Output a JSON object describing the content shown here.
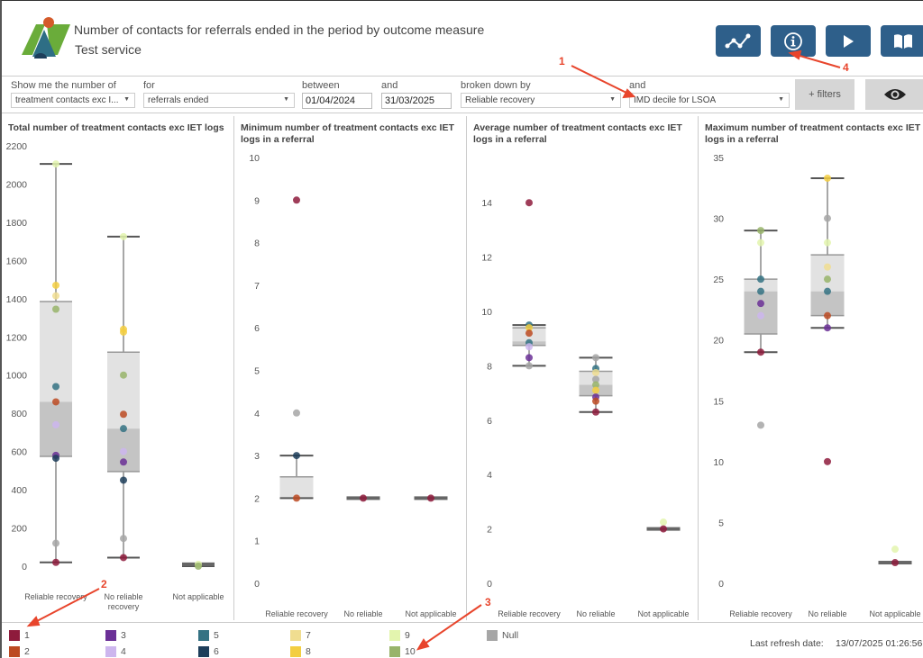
{
  "header": {
    "title": "Number of contacts for referrals ended in the period by outcome measure",
    "subtitle": "Test service",
    "buttons": [
      {
        "name": "trend-button",
        "icon": "line-chart-icon"
      },
      {
        "name": "info-button",
        "icon": "info-icon"
      },
      {
        "name": "play-button",
        "icon": "play-icon"
      },
      {
        "name": "guide-button",
        "icon": "book-icon"
      }
    ]
  },
  "filters": {
    "show_label": "Show me the number of",
    "show_value": "treatment contacts exc I...",
    "for_label": "for",
    "for_value": "referrals ended",
    "between_label": "between",
    "start_date": "01/04/2024",
    "and_label": "and",
    "end_date": "31/03/2025",
    "breakdown_label": "broken down by",
    "breakdown_value": "Reliable recovery",
    "and2_label": "and",
    "breakdown2_value": "IMD decile for LSOA",
    "more_filters_label": "+ filters",
    "eye_icon": "eye-icon"
  },
  "annotations": [
    "1",
    "2",
    "3",
    "4"
  ],
  "legend": {
    "items": [
      {
        "label": "1",
        "color": "#8e1b3c"
      },
      {
        "label": "2",
        "color": "#bc4a22"
      },
      {
        "label": "3",
        "color": "#6b3097"
      },
      {
        "label": "4",
        "color": "#cdb6ee"
      },
      {
        "label": "5",
        "color": "#347283"
      },
      {
        "label": "6",
        "color": "#1d3e5a"
      },
      {
        "label": "7",
        "color": "#f0dd90"
      },
      {
        "label": "8",
        "color": "#f3ce41"
      },
      {
        "label": "9",
        "color": "#e3f5ae"
      },
      {
        "label": "10",
        "color": "#98b46a"
      },
      {
        "label": "Null",
        "color": "#a6a6a6"
      }
    ],
    "refresh_label": "Last refresh date:",
    "refresh_value": "13/07/2025 01:26:56"
  },
  "chart_data": [
    {
      "type": "boxplot",
      "title": "Total number of treatment contacts exc IET logs",
      "categories": [
        "Reliable recovery",
        "No reliable recovery",
        "Not applicable"
      ],
      "ylim": [
        0,
        2200
      ],
      "yticks": [
        0,
        200,
        400,
        600,
        800,
        1000,
        1200,
        1400,
        1600,
        1800,
        2000,
        2200
      ],
      "boxes": [
        {
          "min": 20,
          "q1": 575,
          "median": 860,
          "q3": 1385,
          "max": 2105
        },
        {
          "min": 45,
          "q1": 495,
          "median": 720,
          "q3": 1120,
          "max": 1725
        },
        {
          "min": 0,
          "q1": 0,
          "median": 5,
          "q3": 10,
          "max": 10
        }
      ],
      "points": [
        [
          {
            "d": "9",
            "v": 2105
          },
          {
            "d": "8",
            "v": 1470
          },
          {
            "d": "7",
            "v": 1415
          },
          {
            "d": "10",
            "v": 1345
          },
          {
            "d": "5",
            "v": 940
          },
          {
            "d": "2",
            "v": 860
          },
          {
            "d": "4",
            "v": 740
          },
          {
            "d": "3",
            "v": 580
          },
          {
            "d": "6",
            "v": 565
          },
          {
            "d": "Null",
            "v": 120
          },
          {
            "d": "1",
            "v": 20
          }
        ],
        [
          {
            "d": "9",
            "v": 1725
          },
          {
            "d": "8",
            "v": 1240
          },
          {
            "d": "8",
            "v": 1225
          },
          {
            "d": "10",
            "v": 1000
          },
          {
            "d": "2",
            "v": 795
          },
          {
            "d": "5",
            "v": 720
          },
          {
            "d": "4",
            "v": 600
          },
          {
            "d": "3",
            "v": 545
          },
          {
            "d": "6",
            "v": 450
          },
          {
            "d": "Null",
            "v": 145
          },
          {
            "d": "1",
            "v": 45
          }
        ],
        [
          {
            "d": "9",
            "v": 10
          },
          {
            "d": "10",
            "v": 0
          }
        ]
      ]
    },
    {
      "type": "boxplot",
      "title": "Minimum number of treatment contacts exc IET logs in a referral",
      "categories": [
        "Reliable recovery",
        "No reliable recovery",
        "Not applicable"
      ],
      "ylim": [
        0,
        10
      ],
      "yticks": [
        0,
        1,
        2,
        3,
        4,
        5,
        6,
        7,
        8,
        9,
        10
      ],
      "boxes": [
        {
          "min": 2,
          "q1": 2,
          "median": 2,
          "q3": 2.5,
          "max": 3
        },
        {
          "min": 2,
          "q1": 2,
          "median": 2,
          "q3": 2,
          "max": 2
        },
        {
          "min": 2,
          "q1": 2,
          "median": 2,
          "q3": 2,
          "max": 2
        }
      ],
      "points": [
        [
          {
            "d": "1",
            "v": 9
          },
          {
            "d": "Null",
            "v": 4
          },
          {
            "d": "6",
            "v": 3
          },
          {
            "d": "2",
            "v": 2
          }
        ],
        [
          {
            "d": "1",
            "v": 2
          }
        ],
        [
          {
            "d": "1",
            "v": 2
          }
        ]
      ]
    },
    {
      "type": "boxplot",
      "title": "Average number of treatment contacts exc IET logs in a referral",
      "categories": [
        "Reliable recovery",
        "No reliable recovery",
        "Not applicable"
      ],
      "ylim": [
        0,
        15
      ],
      "yticks": [
        0,
        2,
        4,
        6,
        8,
        10,
        12,
        14
      ],
      "boxes": [
        {
          "min": 8.0,
          "q1": 8.75,
          "median": 8.9,
          "q3": 9.4,
          "max": 9.5
        },
        {
          "min": 6.3,
          "q1": 6.9,
          "median": 7.3,
          "q3": 7.8,
          "max": 8.3
        },
        {
          "min": 2.0,
          "q1": 2.0,
          "median": 2.0,
          "q3": 2.0,
          "max": 2.0
        }
      ],
      "points": [
        [
          {
            "d": "1",
            "v": 14
          },
          {
            "d": "5",
            "v": 9.5
          },
          {
            "d": "8",
            "v": 9.4
          },
          {
            "d": "2",
            "v": 9.2
          },
          {
            "d": "5",
            "v": 8.85
          },
          {
            "d": "4",
            "v": 8.7
          },
          {
            "d": "3",
            "v": 8.3
          },
          {
            "d": "Null",
            "v": 8.0
          }
        ],
        [
          {
            "d": "Null",
            "v": 8.3
          },
          {
            "d": "5",
            "v": 7.9
          },
          {
            "d": "7",
            "v": 7.75
          },
          {
            "d": "Null",
            "v": 7.5
          },
          {
            "d": "10",
            "v": 7.3
          },
          {
            "d": "8",
            "v": 7.1
          },
          {
            "d": "3",
            "v": 6.85
          },
          {
            "d": "2",
            "v": 6.7
          },
          {
            "d": "1",
            "v": 6.3
          }
        ],
        [
          {
            "d": "9",
            "v": 2.25
          },
          {
            "d": "1",
            "v": 2.0
          }
        ]
      ]
    },
    {
      "type": "boxplot",
      "title": "Maximum number of treatment contacts exc IET logs in a referral",
      "categories": [
        "Reliable recovery",
        "No reliable recovery",
        "Not applicable"
      ],
      "ylim": [
        0,
        35
      ],
      "yticks": [
        0,
        5,
        10,
        15,
        20,
        25,
        30,
        35
      ],
      "boxes": [
        {
          "min": 19,
          "q1": 20.5,
          "median": 24,
          "q3": 25,
          "max": 29
        },
        {
          "min": 21,
          "q1": 22,
          "median": 24,
          "q3": 27,
          "max": 33.3
        },
        {
          "min": 1.7,
          "q1": 1.7,
          "median": 1.7,
          "q3": 1.7,
          "max": 1.7
        }
      ],
      "points": [
        [
          {
            "d": "10",
            "v": 29
          },
          {
            "d": "9",
            "v": 28
          },
          {
            "d": "5",
            "v": 25
          },
          {
            "d": "5",
            "v": 24
          },
          {
            "d": "3",
            "v": 23
          },
          {
            "d": "4",
            "v": 22
          },
          {
            "d": "Null",
            "v": 13
          },
          {
            "d": "1",
            "v": 19
          }
        ],
        [
          {
            "d": "8",
            "v": 33.3
          },
          {
            "d": "Null",
            "v": 30
          },
          {
            "d": "9",
            "v": 28
          },
          {
            "d": "7",
            "v": 26
          },
          {
            "d": "10",
            "v": 25
          },
          {
            "d": "5",
            "v": 24
          },
          {
            "d": "2",
            "v": 22
          },
          {
            "d": "3",
            "v": 21
          },
          {
            "d": "1",
            "v": 10
          }
        ],
        [
          {
            "d": "9",
            "v": 2.8
          },
          {
            "d": "1",
            "v": 1.7
          }
        ]
      ]
    }
  ]
}
